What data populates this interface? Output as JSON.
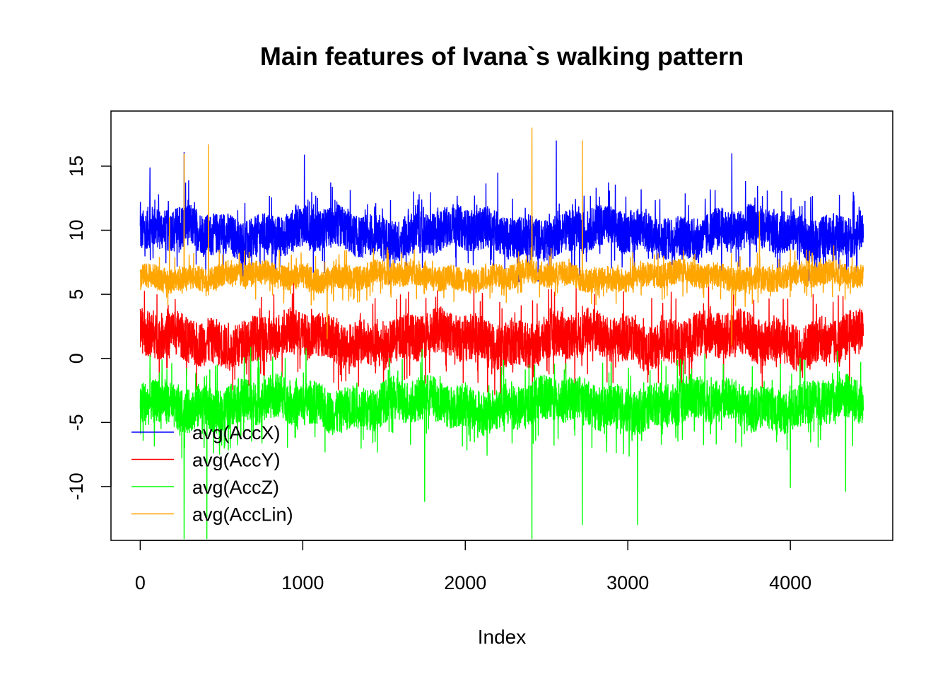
{
  "chart_data": {
    "type": "line",
    "title": "Main features of Ivana`s walking pattern",
    "xlabel": "Index",
    "ylabel": "",
    "xlim": [
      -180,
      4630
    ],
    "ylim": [
      -14.2,
      19.3
    ],
    "x_ticks": [
      0,
      1000,
      2000,
      3000,
      4000
    ],
    "y_ticks": [
      -10,
      -5,
      0,
      5,
      10,
      15
    ],
    "n_points": 4450,
    "grid": false,
    "legend_position": "bottom-left",
    "series": [
      {
        "name": "avg(AccX)",
        "color": "#0000ff",
        "mean": 9.8,
        "spread": 2.2,
        "spikes": [
          [
            270,
            16.1
          ],
          [
            1010,
            15.9
          ],
          [
            2560,
            17.0
          ],
          [
            3640,
            16.0
          ],
          [
            60,
            14.9
          ],
          [
            2200,
            14.5
          ]
        ]
      },
      {
        "name": "avg(AccY)",
        "color": "#ff0000",
        "mean": 1.5,
        "spread": 2.4,
        "spikes": [
          [
            2600,
            2.6
          ],
          [
            1650,
            5.2
          ],
          [
            3650,
            5.0
          ]
        ]
      },
      {
        "name": "avg(AccZ)",
        "color": "#00ff00",
        "mean": -3.6,
        "spread": 2.3,
        "spikes": [
          [
            270,
            -14.1
          ],
          [
            410,
            -14.1
          ],
          [
            1750,
            -11.2
          ],
          [
            2410,
            -14.1
          ],
          [
            2720,
            -13.0
          ],
          [
            3060,
            -13.0
          ],
          [
            4000,
            -10.1
          ],
          [
            4340,
            -10.4
          ],
          [
            1020,
            0.8
          ],
          [
            680,
            0.9
          ]
        ]
      },
      {
        "name": "avg(AccLin)",
        "color": "#ffa500",
        "mean": 6.4,
        "spread": 1.3,
        "spikes": [
          [
            270,
            16.0
          ],
          [
            420,
            16.7
          ],
          [
            2410,
            18.0
          ],
          [
            2720,
            17.0
          ],
          [
            180,
            11.0
          ],
          [
            1150,
            1.5
          ],
          [
            3640,
            1.0
          ],
          [
            3810,
            11.5
          ]
        ]
      }
    ]
  }
}
